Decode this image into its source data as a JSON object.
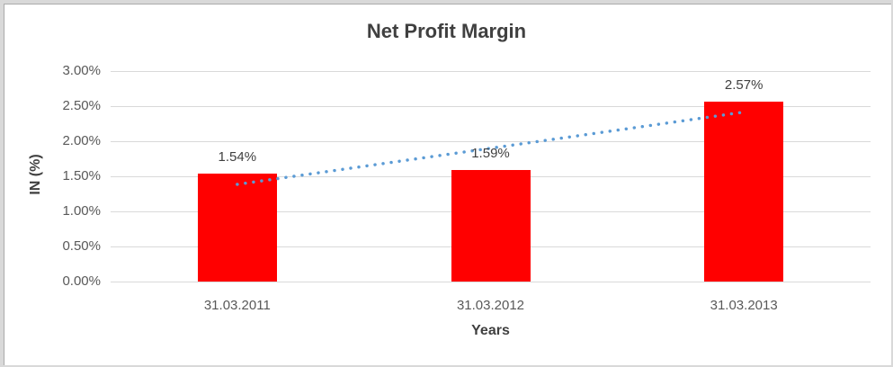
{
  "chart": {
    "title": "Net Profit Margin",
    "y_axis_title": "IN (%)",
    "x_axis_title": "Years",
    "colors": {
      "bar": "#ff0000",
      "trendline": "#5b9bd5",
      "gridline": "#d9d9d9",
      "axis_text": "#595959",
      "title_text": "#404040",
      "frame_border": "#ababab",
      "frame_margin": "#d9d9d9"
    }
  },
  "chart_data": {
    "type": "bar",
    "title": "Net Profit Margin",
    "xlabel": "Years",
    "ylabel": "IN (%)",
    "categories": [
      "31.03.2011",
      "31.03.2012",
      "31.03.2013"
    ],
    "values": [
      1.54,
      1.59,
      2.57
    ],
    "data_labels": [
      "1.54%",
      "1.59%",
      "2.57%"
    ],
    "ylim": [
      0,
      3
    ],
    "ytick_step": 0.5,
    "ytick_labels": [
      "0.00%",
      "0.50%",
      "1.00%",
      "1.50%",
      "2.00%",
      "2.50%",
      "3.00%"
    ],
    "grid": true,
    "legend": "none",
    "trendline": {
      "type": "linear",
      "style": "dotted",
      "color": "#5b9bd5"
    }
  }
}
